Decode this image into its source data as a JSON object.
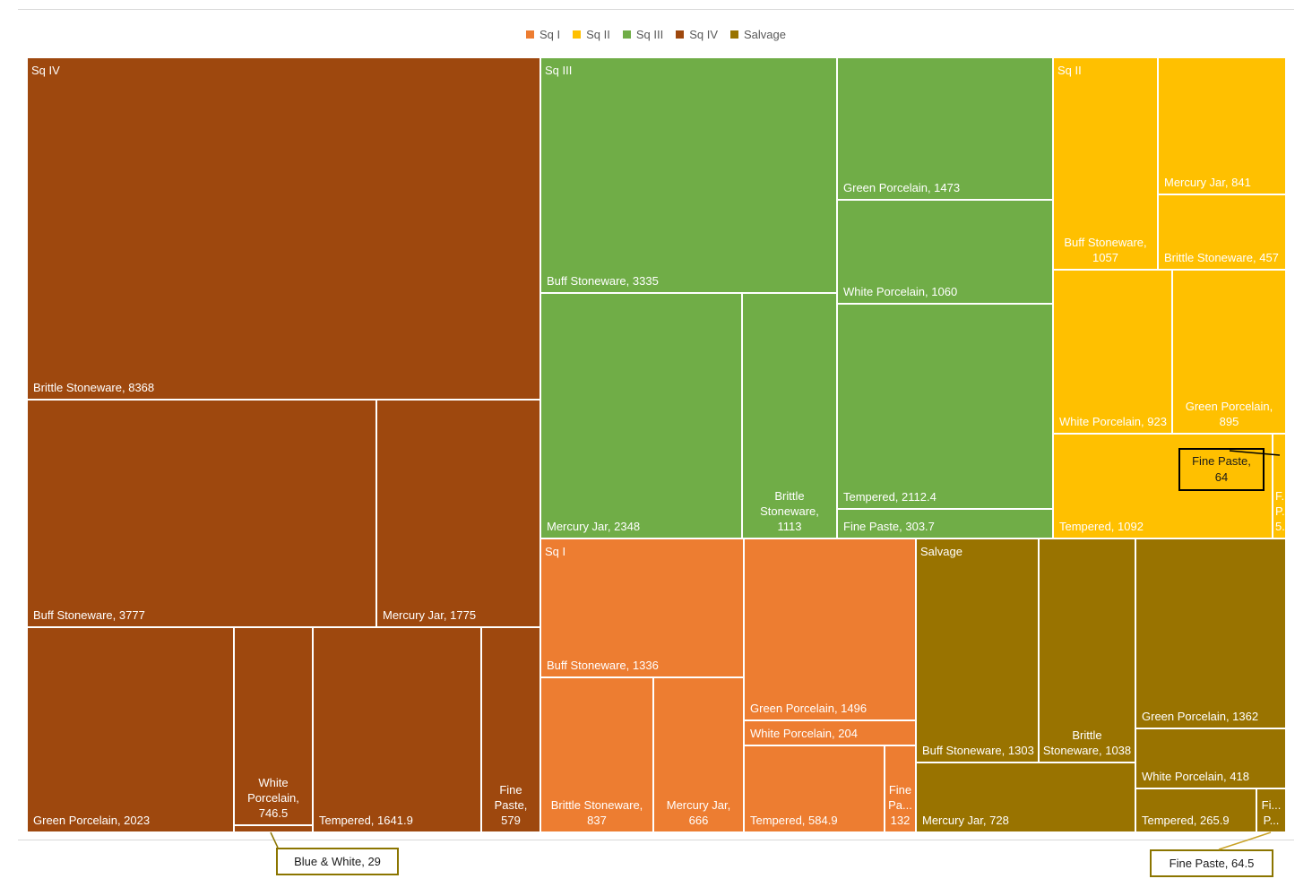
{
  "chart_data": {
    "type": "treemap",
    "legend": [
      {
        "name": "Sq I",
        "color": "#ED7D31"
      },
      {
        "name": "Sq II",
        "color": "#FFC000"
      },
      {
        "name": "Sq III",
        "color": "#70AD47"
      },
      {
        "name": "Sq IV",
        "color": "#9E480E"
      },
      {
        "name": "Salvage",
        "color": "#997300"
      }
    ],
    "groups": [
      {
        "name": "Sq IV",
        "color": "#9E480E",
        "items": [
          {
            "label": "Brittle Stoneware, 8368",
            "value": 8368
          },
          {
            "label": "Buff Stoneware, 3777",
            "value": 3777
          },
          {
            "label": "Mercury Jar, 1775",
            "value": 1775
          },
          {
            "label": "Green Porcelain, 2023",
            "value": 2023
          },
          {
            "label": "White Porcelain, 746.5",
            "value": 746.5
          },
          {
            "label": "Blue & White, 29",
            "value": 29
          },
          {
            "label": "Tempered, 1641.9",
            "value": 1641.9
          },
          {
            "label": "Fine Paste, 579",
            "value": 579
          }
        ]
      },
      {
        "name": "Sq III",
        "color": "#70AD47",
        "items": [
          {
            "label": "Buff Stoneware, 3335",
            "value": 3335
          },
          {
            "label": "Mercury Jar, 2348",
            "value": 2348
          },
          {
            "label": "Brittle Stoneware, 1113",
            "value": 1113
          },
          {
            "label": "Green Porcelain, 1473",
            "value": 1473
          },
          {
            "label": "White Porcelain, 1060",
            "value": 1060
          },
          {
            "label": "Tempered, 2112.4",
            "value": 2112.4
          },
          {
            "label": "Fine Paste, 303.7",
            "value": 303.7
          }
        ]
      },
      {
        "name": "Sq II",
        "color": "#FFC000",
        "items": [
          {
            "label": "Buff Stoneware, 1057",
            "value": 1057
          },
          {
            "label": "Mercury Jar, 841",
            "value": 841
          },
          {
            "label": "Brittle Stoneware, 457",
            "value": 457
          },
          {
            "label": "White Porcelain, 923",
            "value": 923
          },
          {
            "label": "Green Porcelain, 895",
            "value": 895
          },
          {
            "label": "Tempered, 1092",
            "value": 1092
          },
          {
            "label": "Fine Paste, 64",
            "value": 64
          },
          {
            "label": "F... P... 5...",
            "value": null
          }
        ]
      },
      {
        "name": "Sq I",
        "color": "#ED7D31",
        "items": [
          {
            "label": "Buff Stoneware, 1336",
            "value": 1336
          },
          {
            "label": "Brittle Stoneware, 837",
            "value": 837
          },
          {
            "label": "Mercury Jar, 666",
            "value": 666
          },
          {
            "label": "Green Porcelain, 1496",
            "value": 1496
          },
          {
            "label": "White Porcelain, 204",
            "value": 204
          },
          {
            "label": "Tempered, 584.9",
            "value": 584.9
          },
          {
            "label": "Fine Paste, 132",
            "value": 132
          }
        ]
      },
      {
        "name": "Salvage",
        "color": "#997300",
        "items": [
          {
            "label": "Buff Stoneware, 1303",
            "value": 1303
          },
          {
            "label": "Brittle Stoneware, 1038",
            "value": 1038
          },
          {
            "label": "Mercury Jar, 728",
            "value": 728
          },
          {
            "label": "Green Porcelain, 1362",
            "value": 1362
          },
          {
            "label": "White Porcelain, 418",
            "value": 418
          },
          {
            "label": "Tempered, 265.9",
            "value": 265.9
          },
          {
            "label": "Fine Paste, 64.5",
            "value": 64.5
          }
        ]
      }
    ],
    "truncated_labels": {
      "sq4_fine_paste": [
        "Fine",
        "Paste,",
        "579"
      ],
      "sq4_white_porcelain": [
        "White",
        "Porcelain,",
        "746.5"
      ],
      "sq3_brittle": [
        "Brittle",
        "Stoneware,",
        "1113"
      ],
      "sq2_buff": [
        "Buff Stoneware,",
        "1057"
      ],
      "sq2_green": [
        "Green Porcelain,",
        "895"
      ],
      "sq2_f": [
        "F...",
        "P...",
        "5..."
      ],
      "sq1_brittle": [
        "Brittle Stoneware,",
        "837"
      ],
      "sq1_mercury": [
        "Mercury Jar,",
        "666"
      ],
      "sq1_fine": [
        "Fine",
        "Pa...",
        "132"
      ],
      "salv_brittle": [
        "Brittle",
        "Stoneware, 1038"
      ],
      "salv_fine": [
        "Fi...",
        "P..."
      ]
    },
    "callouts": [
      {
        "text": "Blue & White, 29"
      },
      {
        "text": "Fine Paste, 64.5"
      },
      {
        "text": "Fine Paste, 64"
      }
    ]
  }
}
